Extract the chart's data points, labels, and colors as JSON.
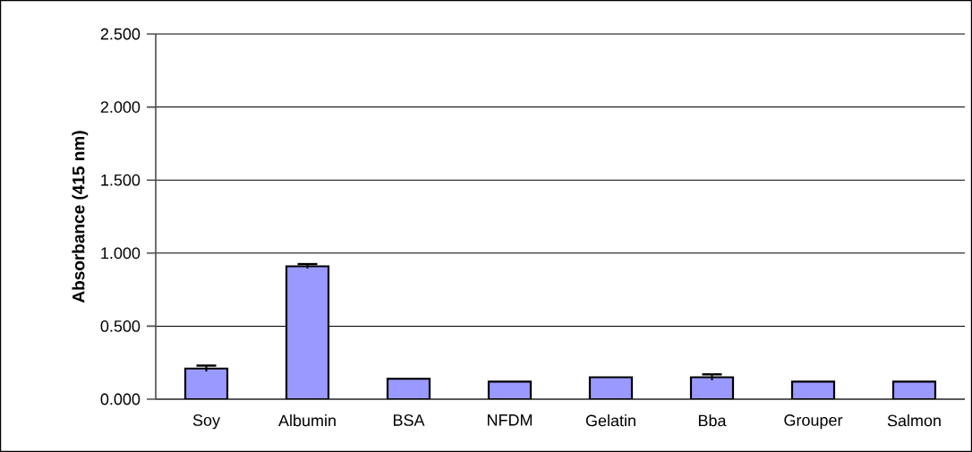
{
  "chart_data": {
    "type": "bar",
    "ylabel": "Absorbance (415 nm)",
    "categories": [
      "Soy",
      "Albumin",
      "BSA",
      "NFDM",
      "Gelatin",
      "Bba",
      "Grouper",
      "Salmon"
    ],
    "values": [
      0.21,
      0.91,
      0.14,
      0.12,
      0.15,
      0.15,
      0.12,
      0.12
    ],
    "errors": [
      0.02,
      0.015,
      null,
      null,
      null,
      0.02,
      null,
      null
    ],
    "color": "#9999ff",
    "ylim": [
      0,
      2.5
    ],
    "yticks": [
      {
        "value": 0,
        "label": "0.000"
      },
      {
        "value": 0.5,
        "label": "0.500"
      },
      {
        "value": 1,
        "label": "1.000"
      },
      {
        "value": 1.5,
        "label": "1.500"
      },
      {
        "value": 2,
        "label": "2.000"
      },
      {
        "value": 2.5,
        "label": "2.500"
      }
    ],
    "grid": "y"
  }
}
